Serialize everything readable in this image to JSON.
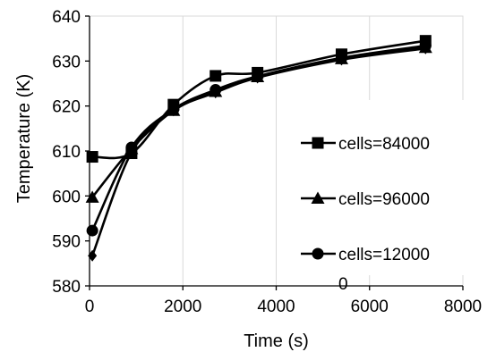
{
  "chart_data": {
    "type": "line",
    "title": "",
    "xlabel": "Time (s)",
    "ylabel": "Temperature (K)",
    "xlim": [
      0,
      8000
    ],
    "ylim": [
      580,
      640
    ],
    "xticks": [
      0,
      2000,
      4000,
      6000,
      8000
    ],
    "yticks": [
      580,
      590,
      600,
      610,
      620,
      630,
      640
    ],
    "grid": "vertical",
    "legend_position": "right",
    "series": [
      {
        "name": "cells=84000",
        "marker": "square",
        "x": [
          60,
          900,
          1800,
          2700,
          3600,
          5400,
          7200
        ],
        "y": [
          608.7,
          609.5,
          620.3,
          626.7,
          627.4,
          631.5,
          634.5
        ]
      },
      {
        "name": "cells=96000",
        "marker": "triangle",
        "x": [
          60,
          900,
          1800,
          2700,
          3600,
          5400,
          7200
        ],
        "y": [
          599.7,
          610.5,
          619.0,
          623.2,
          626.5,
          630.5,
          633.0
        ]
      },
      {
        "name": "cells=120000",
        "legend_lines": [
          "cells=12000",
          "0"
        ],
        "marker": "circle",
        "x": [
          60,
          900,
          1800,
          2700,
          3600,
          5400,
          7200
        ],
        "y": [
          592.3,
          610.8,
          619.3,
          623.6,
          626.6,
          630.7,
          633.4
        ]
      },
      {
        "name": "",
        "marker": "diamond",
        "x": [
          60,
          900,
          1800,
          2700,
          3600,
          5400,
          7200
        ],
        "y": [
          586.7,
          609.7,
          619.0,
          623.0,
          626.3,
          630.3,
          632.8
        ]
      }
    ],
    "colors": {
      "line": "#000000",
      "grid": "#d9d9d9",
      "axis": "#000000"
    }
  }
}
